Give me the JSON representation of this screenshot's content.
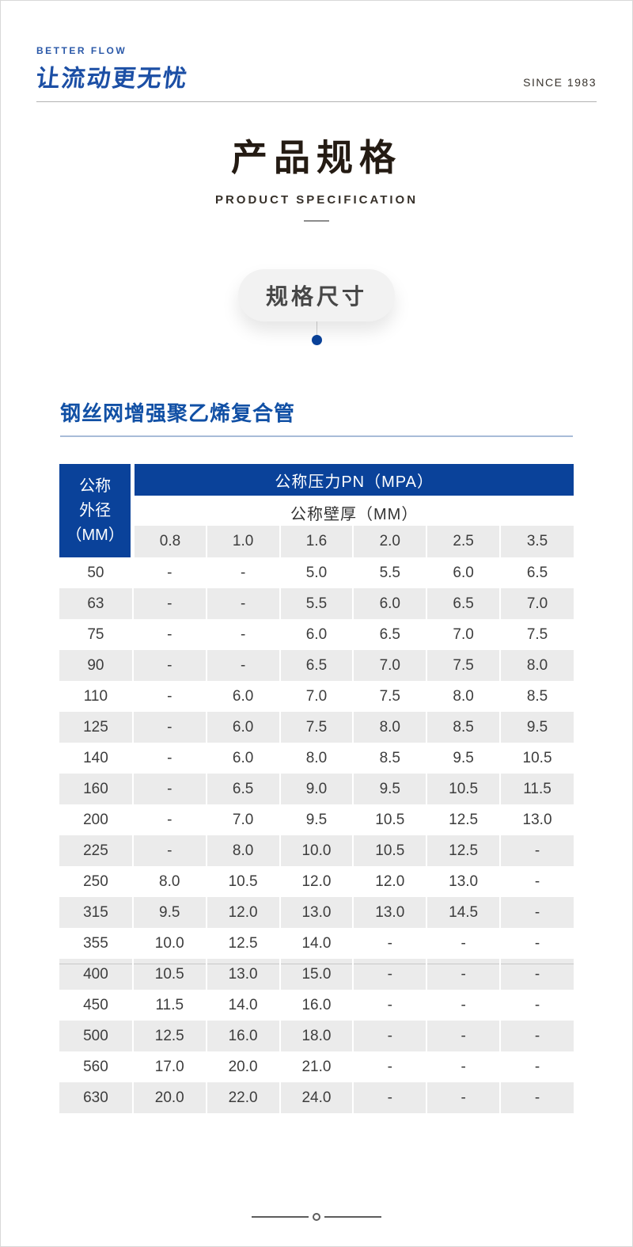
{
  "header": {
    "brand_sub": "BETTER FLOW",
    "brand_main": "让流动更无忧",
    "since": "SINCE 1983"
  },
  "title": {
    "main": "产品规格",
    "sub": "PRODUCT SPECIFICATION"
  },
  "badge": {
    "label": "规格尺寸"
  },
  "section": {
    "heading": "钢丝网增强聚乙烯复合管"
  },
  "table": {
    "corner_label": "公称\n外径\n（MM）",
    "pressure_header": "公称压力PN（MPA）",
    "thickness_header": "公称壁厚（MM）",
    "pressure_values": [
      "0.8",
      "1.0",
      "1.6",
      "2.0",
      "2.5",
      "3.5"
    ],
    "rows": [
      {
        "od": "50",
        "values": [
          "-",
          "-",
          "5.0",
          "5.5",
          "6.0",
          "6.5"
        ]
      },
      {
        "od": "63",
        "values": [
          "-",
          "-",
          "5.5",
          "6.0",
          "6.5",
          "7.0"
        ]
      },
      {
        "od": "75",
        "values": [
          "-",
          "-",
          "6.0",
          "6.5",
          "7.0",
          "7.5"
        ]
      },
      {
        "od": "90",
        "values": [
          "-",
          "-",
          "6.5",
          "7.0",
          "7.5",
          "8.0"
        ]
      },
      {
        "od": "110",
        "values": [
          "-",
          "6.0",
          "7.0",
          "7.5",
          "8.0",
          "8.5"
        ]
      },
      {
        "od": "125",
        "values": [
          "-",
          "6.0",
          "7.5",
          "8.0",
          "8.5",
          "9.5"
        ]
      },
      {
        "od": "140",
        "values": [
          "-",
          "6.0",
          "8.0",
          "8.5",
          "9.5",
          "10.5"
        ]
      },
      {
        "od": "160",
        "values": [
          "-",
          "6.5",
          "9.0",
          "9.5",
          "10.5",
          "11.5"
        ]
      },
      {
        "od": "200",
        "values": [
          "-",
          "7.0",
          "9.5",
          "10.5",
          "12.5",
          "13.0"
        ]
      },
      {
        "od": "225",
        "values": [
          "-",
          "8.0",
          "10.0",
          "10.5",
          "12.5",
          "-"
        ]
      },
      {
        "od": "250",
        "values": [
          "8.0",
          "10.5",
          "12.0",
          "12.0",
          "13.0",
          "-"
        ]
      },
      {
        "od": "315",
        "values": [
          "9.5",
          "12.0",
          "13.0",
          "13.0",
          "14.5",
          "-"
        ]
      },
      {
        "od": "355",
        "values": [
          "10.0",
          "12.5",
          "14.0",
          "-",
          "-",
          "-"
        ]
      },
      {
        "od": "400",
        "values": [
          "10.5",
          "13.0",
          "15.0",
          "-",
          "-",
          "-"
        ],
        "divider_top": true
      },
      {
        "od": "450",
        "values": [
          "11.5",
          "14.0",
          "16.0",
          "-",
          "-",
          "-"
        ]
      },
      {
        "od": "500",
        "values": [
          "12.5",
          "16.0",
          "18.0",
          "-",
          "-",
          "-"
        ]
      },
      {
        "od": "560",
        "values": [
          "17.0",
          "20.0",
          "21.0",
          "-",
          "-",
          "-"
        ]
      },
      {
        "od": "630",
        "values": [
          "20.0",
          "22.0",
          "24.0",
          "-",
          "-",
          "-"
        ]
      }
    ]
  },
  "colors": {
    "deep_blue": "#0a429a",
    "brand_blue": "#1c4fa5",
    "section_blue": "#1150a5",
    "row_gray": "#ebebeb",
    "text_dark": "#3d3d3d",
    "title_dark": "#241b13"
  }
}
